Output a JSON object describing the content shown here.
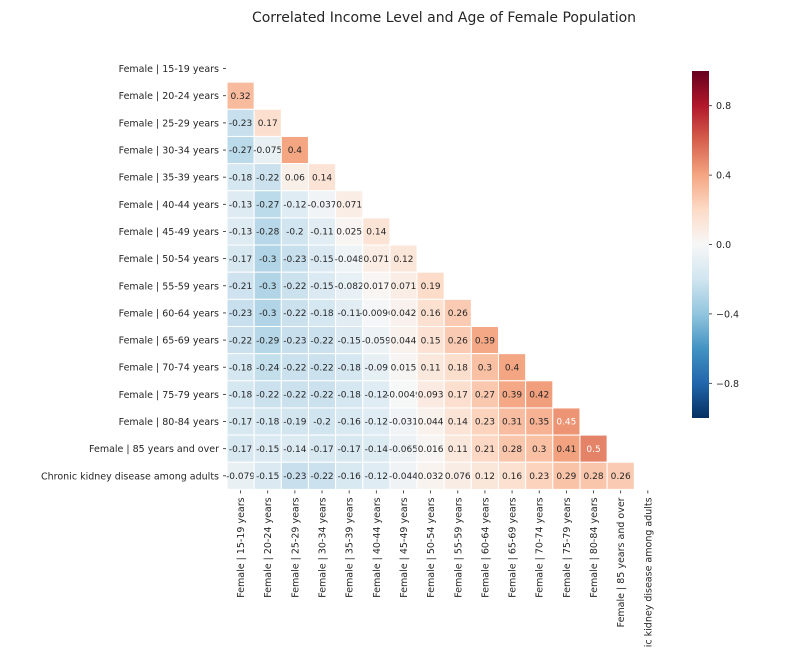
{
  "chart_data": {
    "type": "heatmap",
    "title": "Correlated Income Level and Age of Female Population",
    "mask": "upper-triangle-and-diagonal",
    "labels": [
      "Female | 15-19 years",
      "Female | 20-24 years",
      "Female | 25-29 years",
      "Female | 30-34 years",
      "Female | 35-39 years",
      "Female | 40-44 years",
      "Female | 45-49 years",
      "Female | 50-54 years",
      "Female | 55-59 years",
      "Female | 60-64 years",
      "Female | 65-69 years",
      "Female | 70-74 years",
      "Female | 75-79 years",
      "Female | 80-84 years",
      "Female | 85 years and over",
      "Chronic kidney disease among adults"
    ],
    "rows": [
      [],
      [
        0.32
      ],
      [
        -0.23,
        0.17
      ],
      [
        -0.27,
        -0.075,
        0.4
      ],
      [
        -0.18,
        -0.22,
        0.06,
        0.14
      ],
      [
        -0.13,
        -0.27,
        -0.12,
        -0.037,
        0.071
      ],
      [
        -0.13,
        -0.28,
        -0.2,
        -0.11,
        0.025,
        0.14
      ],
      [
        -0.17,
        -0.3,
        -0.23,
        -0.15,
        -0.048,
        0.071,
        0.12
      ],
      [
        -0.21,
        -0.3,
        -0.22,
        -0.15,
        -0.082,
        0.017,
        0.071,
        0.19
      ],
      [
        -0.23,
        -0.3,
        -0.22,
        -0.18,
        -0.11,
        -0.0096,
        0.042,
        0.16,
        0.26
      ],
      [
        -0.22,
        -0.29,
        -0.23,
        -0.22,
        -0.15,
        -0.059,
        0.044,
        0.15,
        0.26,
        0.39
      ],
      [
        -0.18,
        -0.24,
        -0.22,
        -0.22,
        -0.18,
        -0.09,
        0.015,
        0.11,
        0.18,
        0.3,
        0.4
      ],
      [
        -0.18,
        -0.22,
        -0.22,
        -0.22,
        -0.18,
        -0.12,
        -0.0049,
        0.093,
        0.17,
        0.27,
        0.39,
        0.42
      ],
      [
        -0.17,
        -0.18,
        -0.19,
        -0.2,
        -0.16,
        -0.12,
        -0.031,
        0.044,
        0.14,
        0.23,
        0.31,
        0.35,
        0.45
      ],
      [
        -0.17,
        -0.15,
        -0.14,
        -0.17,
        -0.17,
        -0.14,
        -0.065,
        0.016,
        0.11,
        0.21,
        0.28,
        0.3,
        0.41,
        0.5
      ],
      [
        -0.079,
        -0.15,
        -0.23,
        -0.22,
        -0.16,
        -0.12,
        -0.044,
        0.032,
        0.076,
        0.12,
        0.16,
        0.23,
        0.29,
        0.28,
        0.26
      ]
    ],
    "colorbar": {
      "vmin": -1,
      "vmax": 1,
      "ticks": [
        0.8,
        0.4,
        0.0,
        -0.4,
        -0.8
      ],
      "tick_labels": [
        "0.8",
        "0.4",
        "0.0",
        "−0.4",
        "−0.8"
      ],
      "colormap": "RdBu_r"
    }
  }
}
